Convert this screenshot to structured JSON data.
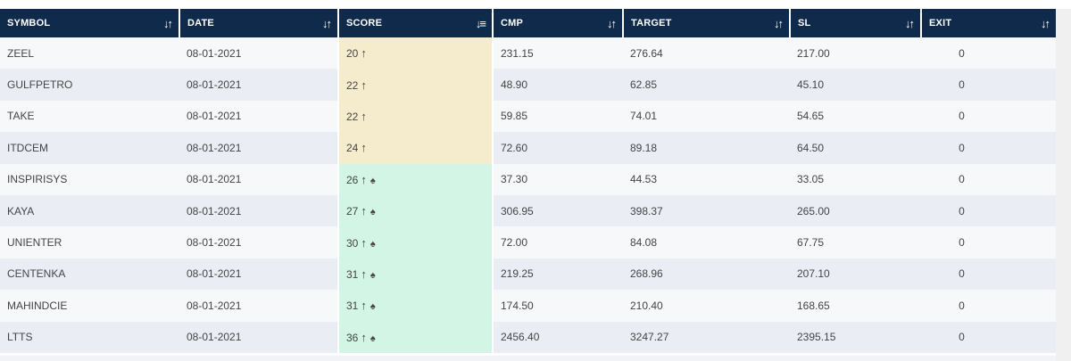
{
  "columns": [
    {
      "key": "symbol",
      "label": "SYMBOL",
      "sort_icon": "sort-updown-icon"
    },
    {
      "key": "date",
      "label": "DATE",
      "sort_icon": "sort-updown-icon"
    },
    {
      "key": "score",
      "label": "SCORE",
      "sort_icon": "sort-descending-icon"
    },
    {
      "key": "cmp",
      "label": "CMP",
      "sort_icon": "sort-updown-icon"
    },
    {
      "key": "target",
      "label": "TARGET",
      "sort_icon": "sort-updown-icon"
    },
    {
      "key": "sl",
      "label": "SL",
      "sort_icon": "sort-updown-icon"
    },
    {
      "key": "exit",
      "label": "EXIT",
      "sort_icon": "sort-updown-icon"
    }
  ],
  "rows": [
    {
      "symbol": "ZEEL",
      "date": "08-01-2021",
      "score": "20",
      "score_arrow": "↑",
      "spade": "",
      "score_color": "#f5ecce",
      "cmp": "231.15",
      "target": "276.64",
      "sl": "217.00",
      "exit": "0"
    },
    {
      "symbol": "GULFPETRO",
      "date": "08-01-2021",
      "score": "22",
      "score_arrow": "↑",
      "spade": "",
      "score_color": "#f5ecce",
      "cmp": "48.90",
      "target": "62.85",
      "sl": "45.10",
      "exit": "0"
    },
    {
      "symbol": "TAKE",
      "date": "08-01-2021",
      "score": "22",
      "score_arrow": "↑",
      "spade": "",
      "score_color": "#f5ecce",
      "cmp": "59.85",
      "target": "74.01",
      "sl": "54.65",
      "exit": "0"
    },
    {
      "symbol": "ITDCEM",
      "date": "08-01-2021",
      "score": "24",
      "score_arrow": "↑",
      "spade": "",
      "score_color": "#f5ecce",
      "cmp": "72.60",
      "target": "89.18",
      "sl": "64.50",
      "exit": "0"
    },
    {
      "symbol": "INSPIRISYS",
      "date": "08-01-2021",
      "score": "26",
      "score_arrow": "↑",
      "spade": "♠",
      "score_color": "#d2f5e6",
      "cmp": "37.30",
      "target": "44.53",
      "sl": "33.05",
      "exit": "0"
    },
    {
      "symbol": "KAYA",
      "date": "08-01-2021",
      "score": "27",
      "score_arrow": "↑",
      "spade": "♠",
      "score_color": "#d2f5e6",
      "cmp": "306.95",
      "target": "398.37",
      "sl": "265.00",
      "exit": "0"
    },
    {
      "symbol": "UNIENTER",
      "date": "08-01-2021",
      "score": "30",
      "score_arrow": "↑",
      "spade": "♠",
      "score_color": "#d2f5e6",
      "cmp": "72.00",
      "target": "84.08",
      "sl": "67.75",
      "exit": "0"
    },
    {
      "symbol": "CENTENKA",
      "date": "08-01-2021",
      "score": "31",
      "score_arrow": "↑",
      "spade": "♠",
      "score_color": "#d2f5e6",
      "cmp": "219.25",
      "target": "268.96",
      "sl": "207.10",
      "exit": "0"
    },
    {
      "symbol": "MAHINDCIE",
      "date": "08-01-2021",
      "score": "31",
      "score_arrow": "↑",
      "spade": "♠",
      "score_color": "#d2f5e6",
      "cmp": "174.50",
      "target": "210.40",
      "sl": "168.65",
      "exit": "0"
    },
    {
      "symbol": "LTTS",
      "date": "08-01-2021",
      "score": "36",
      "score_arrow": "↑",
      "spade": "♠",
      "score_color": "#d2f5e6",
      "cmp": "2456.40",
      "target": "3247.27",
      "sl": "2395.15",
      "exit": "0"
    }
  ]
}
